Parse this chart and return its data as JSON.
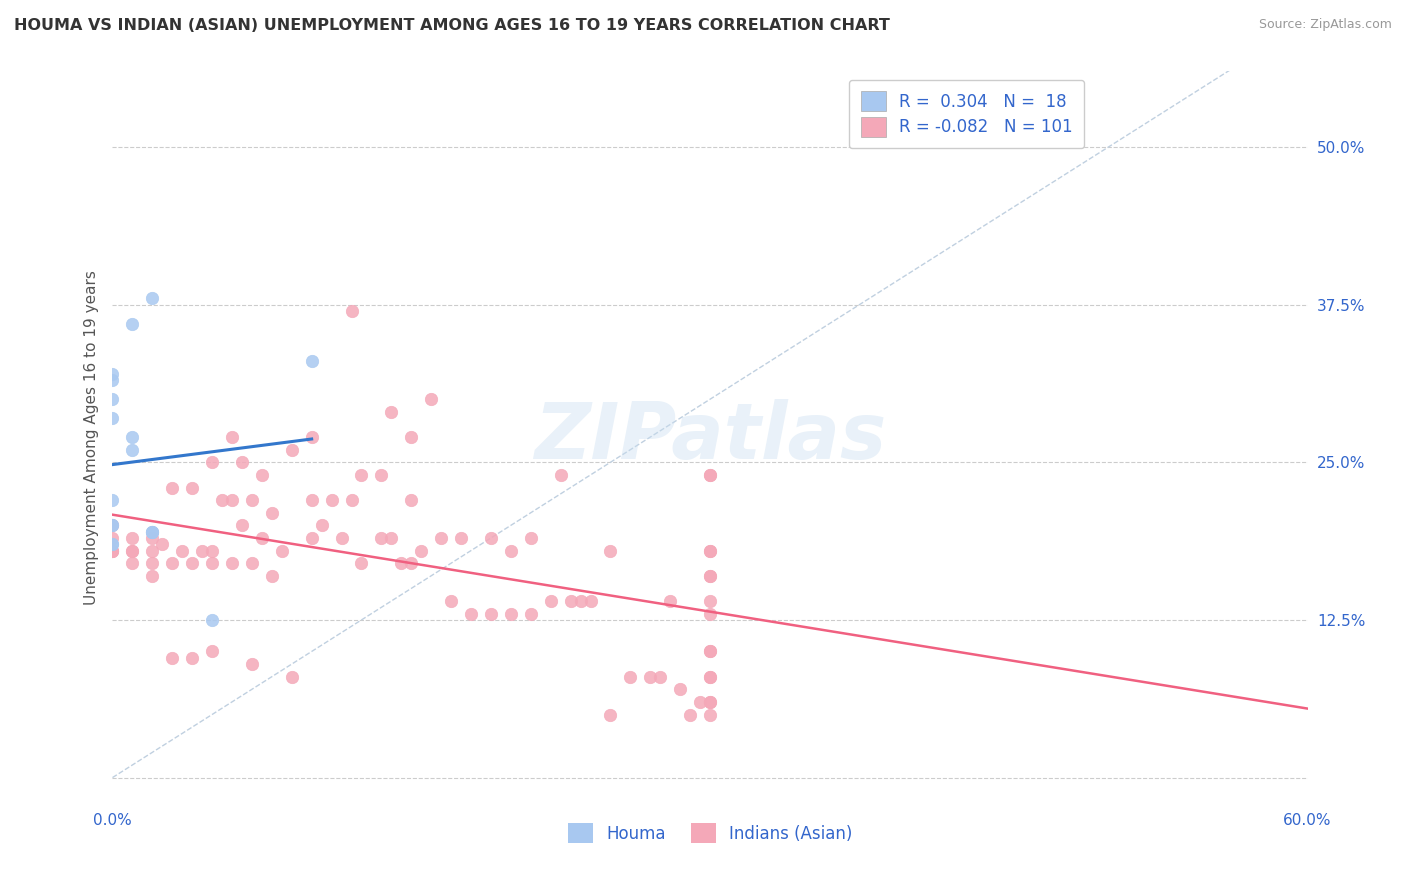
{
  "title": "HOUMA VS INDIAN (ASIAN) UNEMPLOYMENT AMONG AGES 16 TO 19 YEARS CORRELATION CHART",
  "source": "Source: ZipAtlas.com",
  "ylabel": "Unemployment Among Ages 16 to 19 years",
  "xlim": [
    0.0,
    0.6
  ],
  "ylim": [
    -0.02,
    0.56
  ],
  "xticks": [
    0.0,
    0.1,
    0.2,
    0.3,
    0.4,
    0.5,
    0.6
  ],
  "xticklabels": [
    "0.0%",
    "",
    "",
    "",
    "",
    "",
    "60.0%"
  ],
  "ytick_positions": [
    0.0,
    0.125,
    0.25,
    0.375,
    0.5
  ],
  "ytick_labels": [
    "",
    "12.5%",
    "25.0%",
    "37.5%",
    "50.0%"
  ],
  "houma_R": 0.304,
  "houma_N": 18,
  "indian_R": -0.082,
  "indian_N": 101,
  "houma_color": "#a8c8f0",
  "indian_color": "#f4a8b8",
  "houma_line_color": "#3377cc",
  "indian_line_color": "#f06080",
  "watermark": "ZIPatlas",
  "houma_x": [
    0.0,
    0.0,
    0.0,
    0.0,
    0.0,
    0.0,
    0.0,
    0.0,
    0.0,
    0.01,
    0.01,
    0.01,
    0.02,
    0.02,
    0.02,
    0.02,
    0.05,
    0.1
  ],
  "houma_y": [
    0.2,
    0.22,
    0.2,
    0.185,
    0.185,
    0.285,
    0.3,
    0.315,
    0.32,
    0.26,
    0.27,
    0.36,
    0.195,
    0.195,
    0.195,
    0.38,
    0.125,
    0.33
  ],
  "indian_x": [
    0.0,
    0.0,
    0.0,
    0.0,
    0.0,
    0.01,
    0.01,
    0.01,
    0.01,
    0.02,
    0.02,
    0.02,
    0.02,
    0.025,
    0.03,
    0.03,
    0.03,
    0.035,
    0.04,
    0.04,
    0.04,
    0.045,
    0.05,
    0.05,
    0.05,
    0.05,
    0.055,
    0.06,
    0.06,
    0.06,
    0.065,
    0.065,
    0.07,
    0.07,
    0.07,
    0.075,
    0.075,
    0.08,
    0.08,
    0.085,
    0.09,
    0.09,
    0.1,
    0.1,
    0.1,
    0.105,
    0.11,
    0.115,
    0.12,
    0.12,
    0.125,
    0.125,
    0.135,
    0.135,
    0.14,
    0.14,
    0.145,
    0.15,
    0.15,
    0.15,
    0.155,
    0.16,
    0.165,
    0.17,
    0.175,
    0.18,
    0.19,
    0.19,
    0.2,
    0.2,
    0.21,
    0.21,
    0.22,
    0.225,
    0.23,
    0.235,
    0.24,
    0.25,
    0.25,
    0.26,
    0.27,
    0.275,
    0.28,
    0.285,
    0.29,
    0.295,
    0.3,
    0.3,
    0.3,
    0.3,
    0.3,
    0.3,
    0.3,
    0.3,
    0.3,
    0.3,
    0.3,
    0.3,
    0.3,
    0.3,
    0.3
  ],
  "indian_y": [
    0.18,
    0.18,
    0.18,
    0.19,
    0.2,
    0.17,
    0.18,
    0.18,
    0.19,
    0.16,
    0.17,
    0.18,
    0.19,
    0.185,
    0.095,
    0.17,
    0.23,
    0.18,
    0.095,
    0.17,
    0.23,
    0.18,
    0.1,
    0.17,
    0.18,
    0.25,
    0.22,
    0.17,
    0.22,
    0.27,
    0.2,
    0.25,
    0.09,
    0.17,
    0.22,
    0.19,
    0.24,
    0.16,
    0.21,
    0.18,
    0.08,
    0.26,
    0.19,
    0.22,
    0.27,
    0.2,
    0.22,
    0.19,
    0.37,
    0.22,
    0.24,
    0.17,
    0.19,
    0.24,
    0.19,
    0.29,
    0.17,
    0.17,
    0.22,
    0.27,
    0.18,
    0.3,
    0.19,
    0.14,
    0.19,
    0.13,
    0.13,
    0.19,
    0.13,
    0.18,
    0.13,
    0.19,
    0.14,
    0.24,
    0.14,
    0.14,
    0.14,
    0.05,
    0.18,
    0.08,
    0.08,
    0.08,
    0.14,
    0.07,
    0.05,
    0.06,
    0.16,
    0.18,
    0.24,
    0.06,
    0.1,
    0.08,
    0.13,
    0.06,
    0.14,
    0.18,
    0.08,
    0.1,
    0.16,
    0.24,
    0.05
  ]
}
